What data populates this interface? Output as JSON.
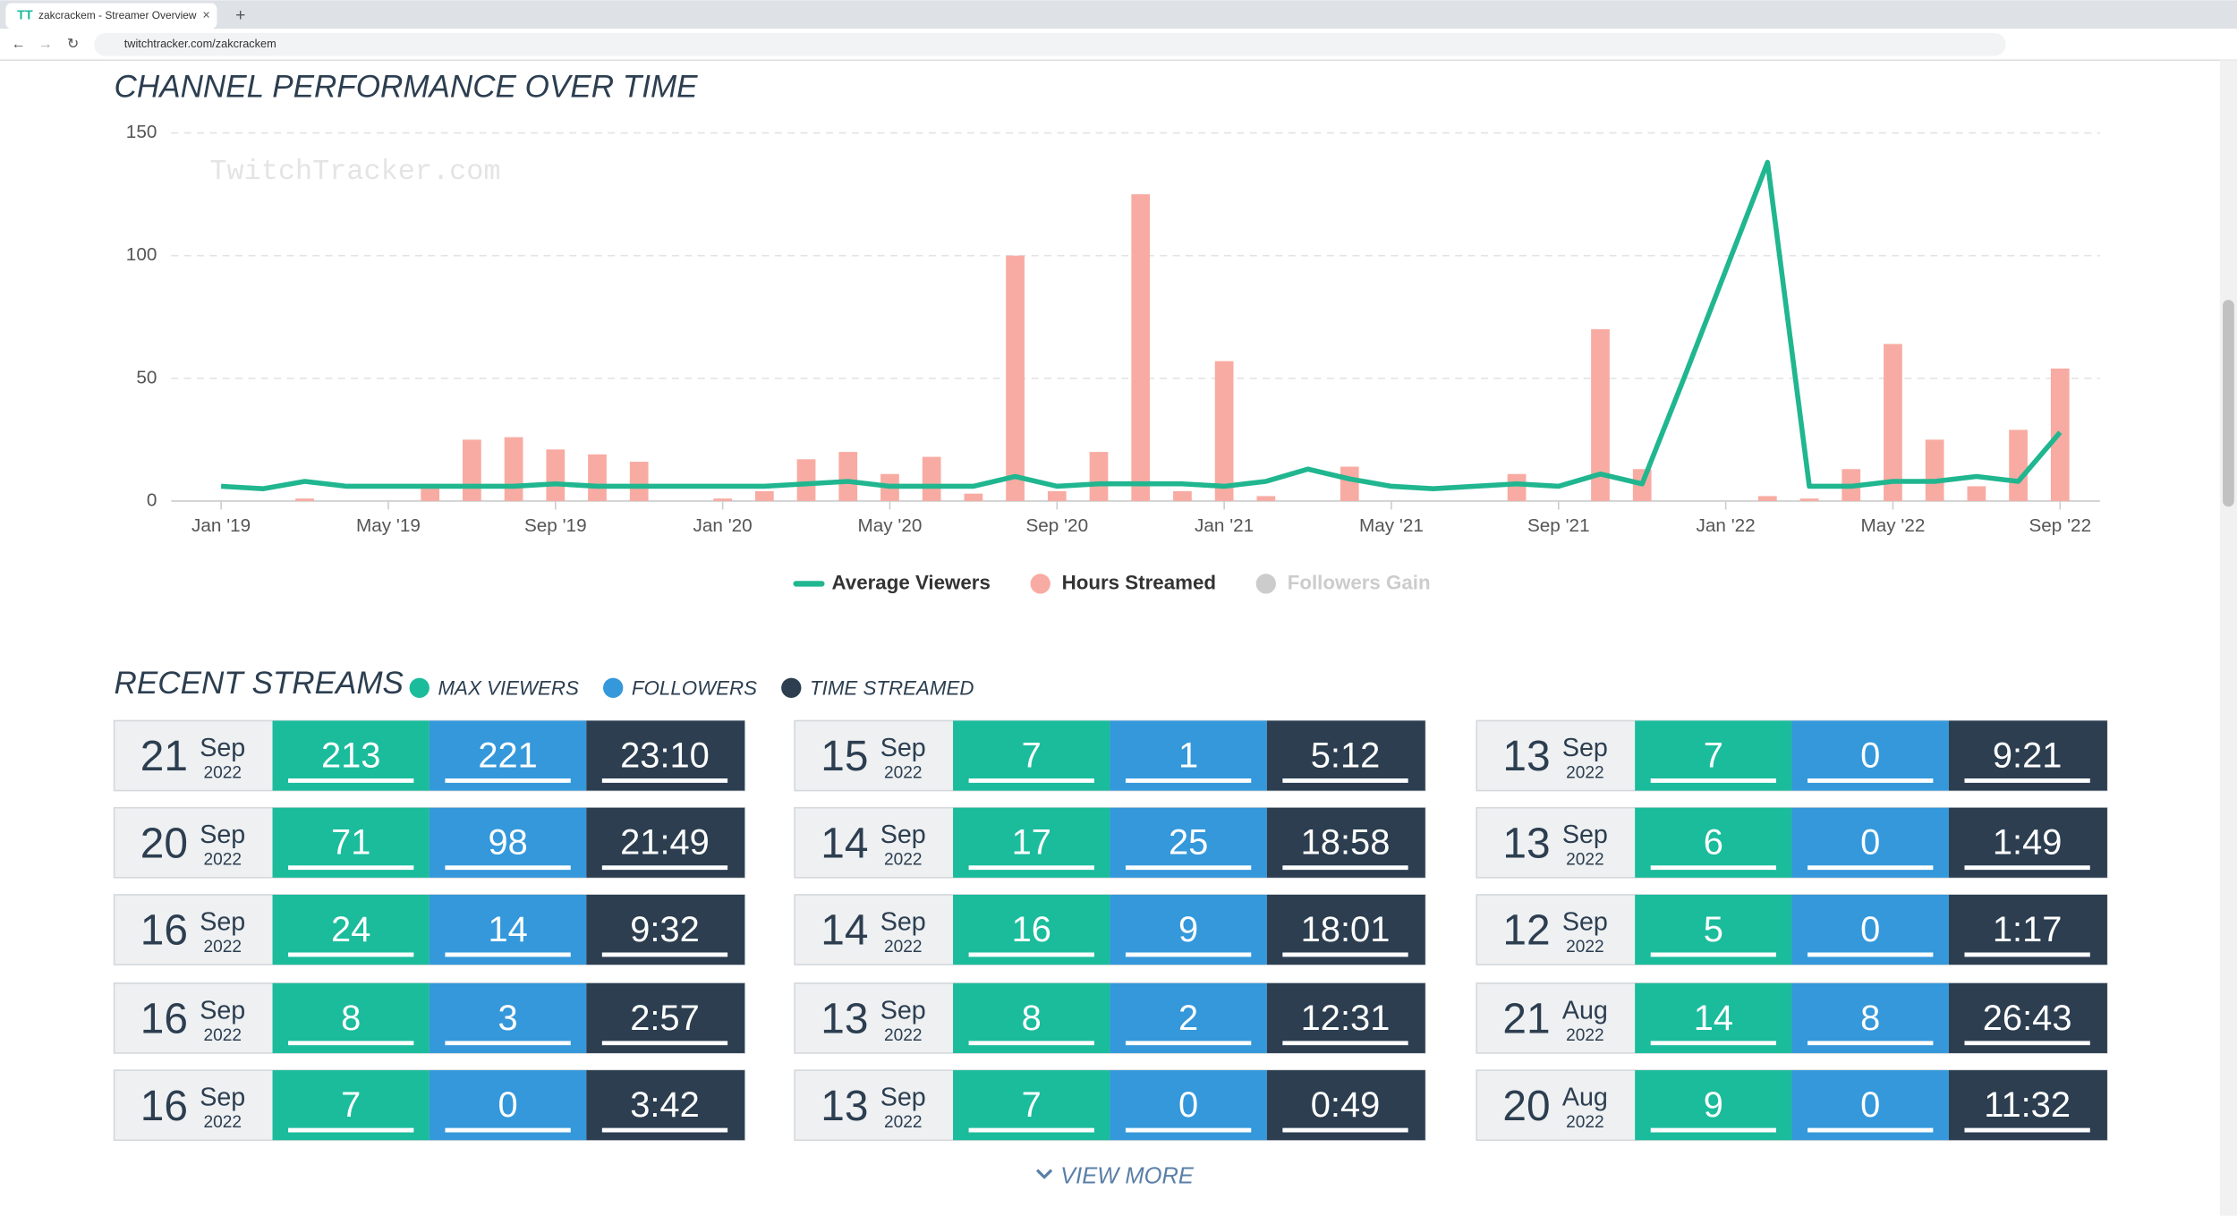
{
  "browser": {
    "tab_title": "zakcrackem - Streamer Overview",
    "url": "twitchtracker.com/zakcrackem"
  },
  "chart_heading": "CHANNEL PERFORMANCE OVER TIME",
  "watermark": "TwitchTracker.com",
  "chart_data": {
    "type": "combo",
    "categories": [
      "Jan '19",
      null,
      null,
      null,
      "May '19",
      null,
      null,
      null,
      "Sep '19",
      null,
      null,
      null,
      "Jan '20",
      null,
      null,
      null,
      "May '20",
      null,
      null,
      null,
      "Sep '20",
      null,
      null,
      null,
      "Jan '21",
      null,
      null,
      null,
      "May '21",
      null,
      null,
      null,
      "Sep '21",
      null,
      null,
      null,
      "Jan '22",
      null,
      null,
      null,
      "May '22",
      null,
      null,
      null,
      "Sep '22"
    ],
    "ylim": [
      0,
      150
    ],
    "yticks": [
      0,
      50,
      100,
      150
    ],
    "grid": true,
    "series": [
      {
        "name": "Average Viewers",
        "type": "line",
        "color": "#20b68f",
        "values": [
          6,
          5,
          8,
          6,
          6,
          6,
          6,
          6,
          7,
          6,
          6,
          6,
          6,
          6,
          7,
          8,
          6,
          6,
          6,
          10,
          6,
          7,
          7,
          7,
          6,
          8,
          13,
          9,
          6,
          5,
          6,
          7,
          6,
          11,
          7,
          50,
          94,
          138,
          6,
          6,
          8,
          8,
          10,
          8,
          28
        ]
      },
      {
        "name": "Hours Streamed",
        "type": "bar",
        "color": "#f8aba2",
        "values": [
          0,
          0,
          1,
          0,
          0,
          7,
          25,
          26,
          21,
          19,
          16,
          0,
          1,
          4,
          17,
          20,
          11,
          18,
          3,
          100,
          4,
          20,
          125,
          4,
          57,
          2,
          0,
          14,
          0,
          0,
          0,
          11,
          0,
          70,
          13,
          0,
          0,
          2,
          1,
          13,
          64,
          25,
          6,
          29,
          54
        ]
      },
      {
        "name": "Followers Gain",
        "type": "bar",
        "color": "#cccccc",
        "visible": false,
        "values": [
          null,
          null,
          null,
          null,
          null,
          null,
          null,
          null,
          null,
          null,
          null,
          null,
          null,
          null,
          null,
          null,
          null,
          null,
          null,
          null,
          null,
          null,
          null,
          null,
          null,
          null,
          null,
          null,
          null,
          null,
          null,
          null,
          null,
          null,
          null,
          null,
          null,
          null,
          null,
          null,
          null,
          null,
          null,
          null,
          null
        ]
      }
    ]
  },
  "recent": {
    "heading": "RECENT STREAMS",
    "legend": [
      {
        "label": "MAX VIEWERS",
        "color": "#1abc9c"
      },
      {
        "label": "FOLLOWERS",
        "color": "#3498db"
      },
      {
        "label": "TIME STREAMED",
        "color": "#2c3e50"
      }
    ],
    "streams": [
      [
        {
          "day": 21,
          "month": "Sep",
          "year": 2022,
          "viewers": 213,
          "followers": 221,
          "time": "23:10"
        },
        {
          "day": 20,
          "month": "Sep",
          "year": 2022,
          "viewers": 71,
          "followers": 98,
          "time": "21:49"
        },
        {
          "day": 16,
          "month": "Sep",
          "year": 2022,
          "viewers": 24,
          "followers": 14,
          "time": "9:32"
        },
        {
          "day": 16,
          "month": "Sep",
          "year": 2022,
          "viewers": 8,
          "followers": 3,
          "time": "2:57"
        },
        {
          "day": 16,
          "month": "Sep",
          "year": 2022,
          "viewers": 7,
          "followers": 0,
          "time": "3:42"
        }
      ],
      [
        {
          "day": 15,
          "month": "Sep",
          "year": 2022,
          "viewers": 7,
          "followers": 1,
          "time": "5:12"
        },
        {
          "day": 14,
          "month": "Sep",
          "year": 2022,
          "viewers": 17,
          "followers": 25,
          "time": "18:58"
        },
        {
          "day": 14,
          "month": "Sep",
          "year": 2022,
          "viewers": 16,
          "followers": 9,
          "time": "18:01"
        },
        {
          "day": 13,
          "month": "Sep",
          "year": 2022,
          "viewers": 8,
          "followers": 2,
          "time": "12:31"
        },
        {
          "day": 13,
          "month": "Sep",
          "year": 2022,
          "viewers": 7,
          "followers": 0,
          "time": "0:49"
        }
      ],
      [
        {
          "day": 13,
          "month": "Sep",
          "year": 2022,
          "viewers": 7,
          "followers": 0,
          "time": "9:21"
        },
        {
          "day": 13,
          "month": "Sep",
          "year": 2022,
          "viewers": 6,
          "followers": 0,
          "time": "1:49"
        },
        {
          "day": 12,
          "month": "Sep",
          "year": 2022,
          "viewers": 5,
          "followers": 0,
          "time": "1:17"
        },
        {
          "day": 21,
          "month": "Aug",
          "year": 2022,
          "viewers": 14,
          "followers": 8,
          "time": "26:43"
        },
        {
          "day": 20,
          "month": "Aug",
          "year": 2022,
          "viewers": 9,
          "followers": 0,
          "time": "11:32"
        }
      ]
    ],
    "view_more": "VIEW MORE"
  }
}
